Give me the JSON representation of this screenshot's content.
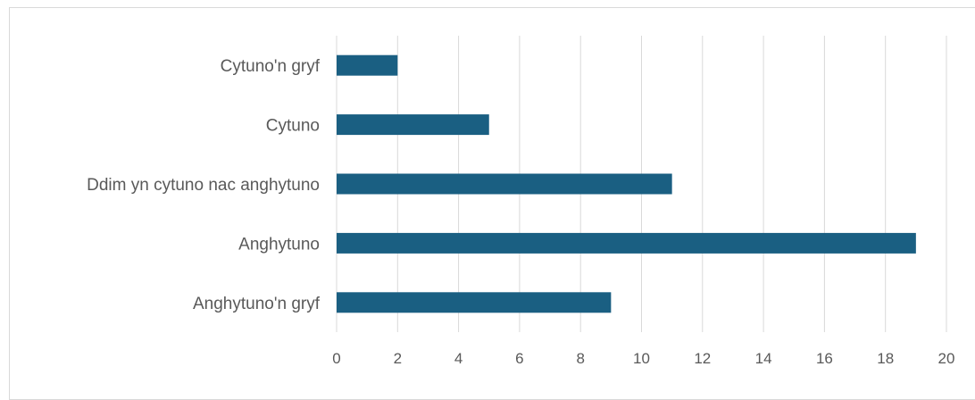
{
  "chart_data": {
    "type": "bar",
    "orientation": "horizontal",
    "categories": [
      "Cytuno'n gryf",
      "Cytuno",
      "Ddim yn cytuno nac anghytuno",
      "Anghytuno",
      "Anghytuno'n gryf"
    ],
    "values": [
      2,
      5,
      11,
      19,
      9
    ],
    "x_ticks": [
      "0",
      "2",
      "4",
      "6",
      "8",
      "10",
      "12",
      "14",
      "16",
      "18",
      "20"
    ],
    "xlim": [
      0,
      20
    ],
    "grid": "vertical",
    "legend": "none",
    "bar_color": "#1a5f82",
    "grid_color": "#d9d9d9",
    "label_color": "#595959"
  }
}
